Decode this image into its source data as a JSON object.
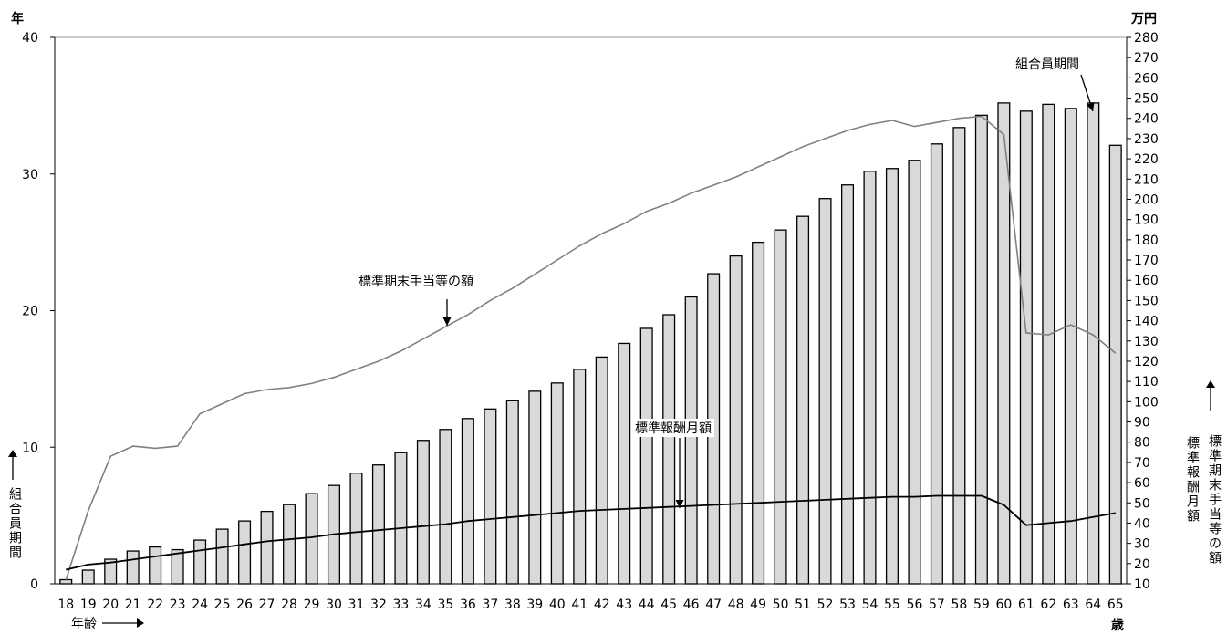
{
  "chart_data": {
    "type": "bar",
    "left_axis_unit": "年",
    "right_axis_unit": "万円",
    "x_unit": "歳",
    "x_axis_label": "年齢",
    "left_axis_label": "組合員期間",
    "right_axis_label_1": "標準報酬月額",
    "right_axis_label_2": "標準期末手当等の額",
    "ages": [
      "18",
      "19",
      "20",
      "21",
      "22",
      "23",
      "24",
      "25",
      "26",
      "27",
      "28",
      "29",
      "30",
      "31",
      "32",
      "33",
      "34",
      "35",
      "36",
      "37",
      "38",
      "39",
      "40",
      "41",
      "42",
      "43",
      "44",
      "45",
      "46",
      "47",
      "48",
      "49",
      "50",
      "51",
      "52",
      "53",
      "54",
      "55",
      "56",
      "57",
      "58",
      "59",
      "60",
      "61",
      "62",
      "63",
      "64",
      "65"
    ],
    "left_ylim": [
      0,
      40
    ],
    "left_ticks": [
      "0",
      "10",
      "20",
      "30",
      "40"
    ],
    "right_ylim": [
      10,
      280
    ],
    "right_ticks": [
      "10",
      "20",
      "30",
      "40",
      "50",
      "60",
      "70",
      "80",
      "90",
      "100",
      "110",
      "120",
      "130",
      "140",
      "150",
      "160",
      "170",
      "180",
      "190",
      "200",
      "210",
      "220",
      "230",
      "240",
      "250",
      "260",
      "270",
      "280"
    ],
    "series": [
      {
        "name": "組合員期間",
        "type": "bar",
        "axis": "left",
        "color": "#d9d9d9",
        "values": [
          0.3,
          1.0,
          1.8,
          2.4,
          2.7,
          2.5,
          3.2,
          4.0,
          4.6,
          5.3,
          5.8,
          6.6,
          7.2,
          8.1,
          8.7,
          9.6,
          10.5,
          11.3,
          12.1,
          12.8,
          13.4,
          14.1,
          14.7,
          15.7,
          16.6,
          17.6,
          18.7,
          19.7,
          21.0,
          22.7,
          24.0,
          25.0,
          25.9,
          26.9,
          28.2,
          29.2,
          30.2,
          30.4,
          31.0,
          32.2,
          33.4,
          34.3,
          35.2,
          34.6,
          35.1,
          34.8,
          35.2,
          32.1
        ]
      },
      {
        "name": "標準期末手当等の額",
        "type": "line",
        "axis": "right",
        "color": "#808080",
        "values": [
          12,
          46,
          73,
          78,
          77,
          78,
          94,
          99,
          104,
          106,
          107,
          109,
          112,
          116,
          120,
          125,
          131,
          137,
          143,
          150,
          156,
          163,
          170,
          177,
          183,
          188,
          194,
          198,
          203,
          207,
          211,
          216,
          221,
          226,
          230,
          234,
          237,
          239,
          236,
          238,
          240,
          241,
          232,
          134,
          133,
          138,
          133,
          124
        ]
      },
      {
        "name": "標準報酬月額",
        "type": "line",
        "axis": "right",
        "color": "#000000",
        "values": [
          17,
          19.5,
          20.5,
          22,
          23.5,
          25,
          26.5,
          28,
          29.5,
          31,
          32,
          33,
          34.5,
          35.5,
          36.5,
          37.5,
          38.5,
          39.5,
          41,
          42,
          43,
          44,
          45,
          46,
          46.5,
          47,
          47.5,
          48,
          48.5,
          49,
          49.5,
          50,
          50.5,
          51,
          51.5,
          52,
          52.5,
          53,
          53,
          53.5,
          53.5,
          53.5,
          49,
          39,
          40,
          41,
          43,
          45
        ]
      }
    ],
    "annotations": {
      "kumiai": "組合員期間",
      "kimatsu": "標準期末手当等の額",
      "houshu": "標準報酬月額"
    }
  }
}
